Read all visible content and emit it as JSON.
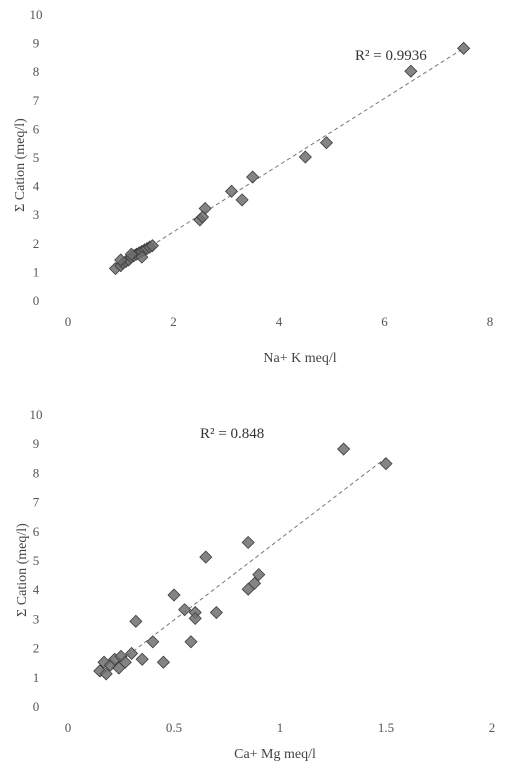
{
  "chart_data": [
    {
      "type": "scatter",
      "xlabel": "Na+ K meq/l",
      "ylabel": "Σ Cation (meq/l)",
      "xlim": [
        0,
        8
      ],
      "ylim": [
        0,
        10
      ],
      "xticks": [
        "0",
        "2",
        "4",
        "6",
        "8"
      ],
      "yticks": [
        "0",
        "1",
        "2",
        "3",
        "4",
        "5",
        "6",
        "7",
        "8",
        "9",
        "10"
      ],
      "grid": false,
      "trendline": {
        "type": "linear",
        "x": [
          0.9,
          7.5
        ],
        "y": [
          1.1,
          8.8
        ],
        "style": "dashed"
      },
      "r2_label": "R² = 0.9936",
      "series": [
        {
          "x": [
            0.9,
            1.0,
            1.05,
            1.1,
            1.15,
            1.2,
            1.25,
            1.3,
            1.35,
            1.4,
            1.45,
            1.5,
            1.55,
            1.6,
            1.0,
            1.2,
            1.4,
            2.5,
            2.6,
            2.55,
            3.1,
            3.3,
            3.5,
            4.5,
            4.9,
            6.5,
            7.5
          ],
          "y": [
            1.1,
            1.2,
            1.3,
            1.35,
            1.4,
            1.5,
            1.55,
            1.6,
            1.65,
            1.7,
            1.75,
            1.8,
            1.85,
            1.9,
            1.4,
            1.6,
            1.5,
            2.8,
            3.2,
            2.9,
            3.8,
            3.5,
            4.3,
            5.0,
            5.5,
            8.0,
            8.8
          ]
        }
      ]
    },
    {
      "type": "scatter",
      "xlabel": "Ca+ Mg meq/l",
      "ylabel": "Σ Cation (meq/l)",
      "xlim": [
        0,
        2
      ],
      "ylim": [
        0,
        10
      ],
      "xticks": [
        "0",
        "0.5",
        "1",
        "1.5",
        "2"
      ],
      "yticks": [
        "0",
        "1",
        "2",
        "3",
        "4",
        "5",
        "6",
        "7",
        "8",
        "9",
        "10"
      ],
      "grid": false,
      "trendline": {
        "type": "linear",
        "x": [
          0.15,
          1.5
        ],
        "y": [
          1.0,
          8.5
        ],
        "style": "dashed"
      },
      "r2_label": "R² = 0.848",
      "series": [
        {
          "x": [
            0.15,
            0.17,
            0.18,
            0.2,
            0.22,
            0.24,
            0.25,
            0.27,
            0.3,
            0.32,
            0.35,
            0.4,
            0.45,
            0.5,
            0.6,
            0.55,
            0.58,
            0.6,
            0.65,
            0.7,
            0.85,
            0.9,
            0.88,
            0.85,
            1.3,
            1.5
          ],
          "y": [
            1.2,
            1.5,
            1.1,
            1.4,
            1.6,
            1.3,
            1.7,
            1.5,
            1.8,
            2.9,
            1.6,
            2.2,
            1.5,
            3.8,
            3.2,
            3.3,
            2.2,
            3.0,
            5.1,
            3.2,
            5.6,
            4.5,
            4.2,
            4.0,
            8.8,
            8.3
          ]
        }
      ]
    }
  ]
}
